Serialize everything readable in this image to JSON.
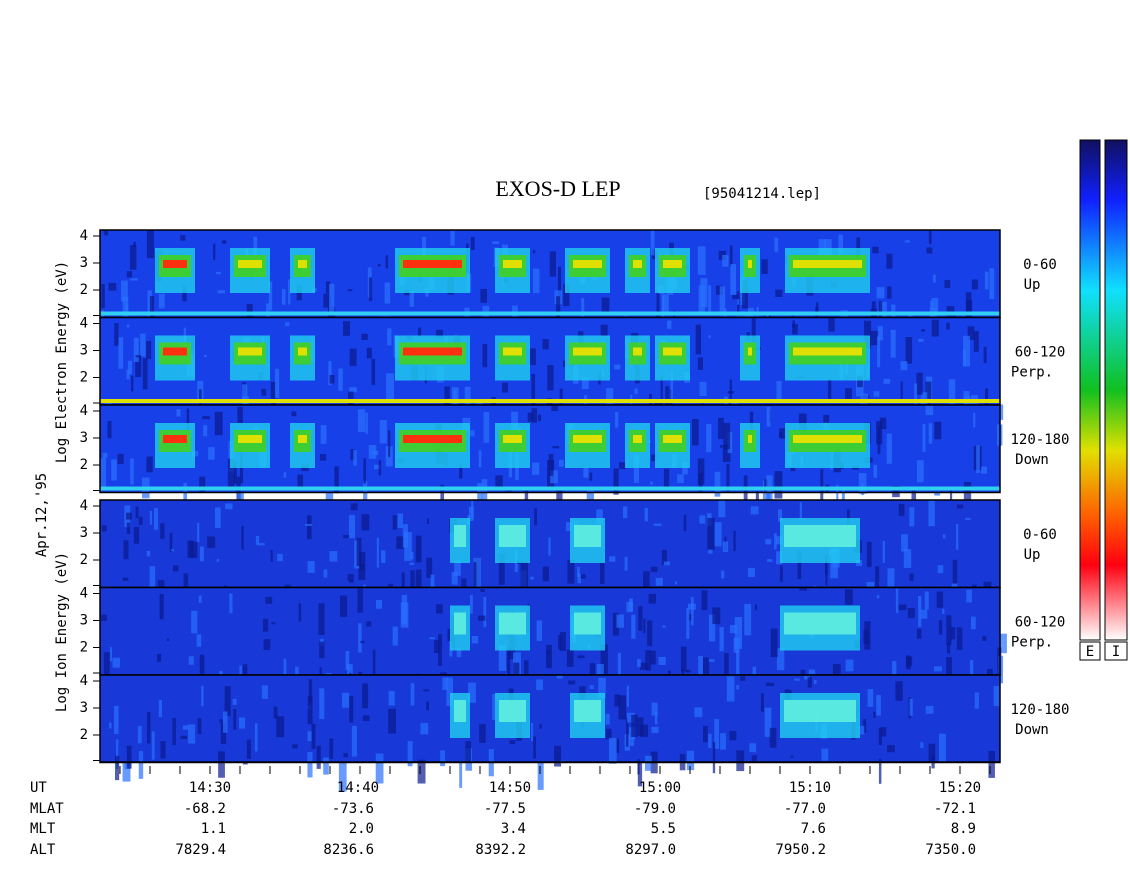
{
  "title": "EXOS-D LEP",
  "file": "[95041214.lep]",
  "date": "Apr.12,'95",
  "electron": {
    "ylabel": "Log  Electron  Energy (eV)",
    "panels": [
      {
        "angle": "0-60",
        "direction": "Up",
        "ticks": [
          4,
          3,
          2
        ]
      },
      {
        "angle": "60-120",
        "direction": "Perp.",
        "ticks": [
          4,
          3,
          2
        ]
      },
      {
        "angle": "120-180",
        "direction": "Down",
        "ticks": [
          4,
          3,
          2
        ]
      }
    ]
  },
  "ion": {
    "ylabel": "Log  Ion  Energy (eV)",
    "panels": [
      {
        "angle": "0-60",
        "direction": "Up",
        "ticks": [
          4,
          3,
          2
        ]
      },
      {
        "angle": "60-120",
        "direction": "Perp.",
        "ticks": [
          4,
          3,
          2
        ]
      },
      {
        "angle": "120-180",
        "direction": "Down",
        "ticks": [
          4,
          3,
          2
        ]
      }
    ]
  },
  "colorbars": [
    "E",
    "I"
  ],
  "orbit": {
    "labels": [
      "UT",
      "MLAT",
      "MLT",
      "ALT"
    ],
    "UT": [
      "14:30",
      "14:40",
      "14:50",
      "15:00",
      "15:10",
      "15:20"
    ],
    "MLAT": [
      "-68.2",
      "-73.6",
      "-77.5",
      "-79.0",
      "-77.0",
      "-72.1"
    ],
    "MLT": [
      "1.1",
      "2.0",
      "3.4",
      "5.5",
      "7.6",
      "8.9"
    ],
    "ALT": [
      "7829.4",
      "8236.6",
      "8392.2",
      "8297.0",
      "7950.2",
      "7350.0"
    ]
  }
}
